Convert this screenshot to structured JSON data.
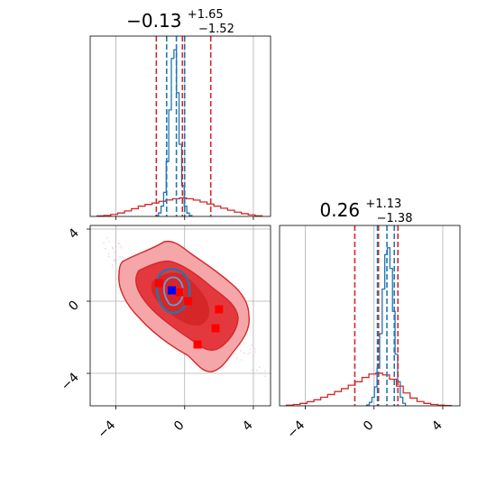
{
  "colors": {
    "reference": "#d62728",
    "fit": "#1f77b4",
    "truth": "#0000ff",
    "grid": "#b0b0b0"
  },
  "chart_data": [
    {
      "type": "histogram",
      "panel": "marginal-param-1",
      "title": {
        "median": "−0.13",
        "plus": "+1.65",
        "minus": "−1.52"
      },
      "xlim": [
        -5.5,
        5
      ],
      "xticks": [
        -4,
        0,
        4
      ],
      "red_quantiles": [
        -1.65,
        -0.13,
        1.52
      ],
      "blue_quantiles": [
        -1.05,
        -0.48,
        0.0
      ],
      "red_hist": {
        "x": [
          -4.9,
          -4.5,
          -4.1,
          -3.7,
          -3.3,
          -2.9,
          -2.5,
          -2.1,
          -1.7,
          -1.3,
          -0.9,
          -0.5,
          -0.1,
          0.3,
          0.7,
          1.1,
          1.5,
          1.9,
          2.3,
          2.7,
          3.1,
          3.5,
          3.9,
          4.3
        ],
        "y": [
          0.003,
          0.006,
          0.012,
          0.02,
          0.032,
          0.045,
          0.06,
          0.07,
          0.078,
          0.088,
          0.096,
          0.103,
          0.108,
          0.103,
          0.095,
          0.084,
          0.072,
          0.06,
          0.048,
          0.036,
          0.025,
          0.016,
          0.009,
          0.004
        ]
      },
      "blue_hist": {
        "x": [
          -1.6,
          -1.45,
          -1.3,
          -1.15,
          -1.0,
          -0.85,
          -0.7,
          -0.55,
          -0.4,
          -0.25,
          -0.1,
          0.05,
          0.2,
          0.35
        ],
        "y": [
          0.005,
          0.02,
          0.06,
          0.14,
          0.32,
          0.62,
          0.92,
          0.97,
          0.72,
          0.42,
          0.18,
          0.06,
          0.02,
          0.005
        ]
      },
      "ylim": [
        0,
        1.05
      ]
    },
    {
      "type": "histogram",
      "panel": "marginal-param-2",
      "title": {
        "median": "0.26",
        "plus": "+1.13",
        "minus": "−1.38"
      },
      "xlim": [
        -5.5,
        5
      ],
      "xticks": [
        -4,
        0,
        4
      ],
      "red_quantiles": [
        -1.12,
        0.26,
        1.39
      ],
      "blue_quantiles": [
        0.2,
        0.75,
        1.18
      ],
      "red_hist": {
        "x": [
          -4.9,
          -4.5,
          -4.1,
          -3.7,
          -3.3,
          -2.9,
          -2.5,
          -2.1,
          -1.7,
          -1.3,
          -0.9,
          -0.5,
          -0.1,
          0.3,
          0.7,
          1.1,
          1.5,
          1.9,
          2.3,
          2.7,
          3.1,
          3.5,
          3.9,
          4.3
        ],
        "y": [
          0.004,
          0.008,
          0.014,
          0.024,
          0.035,
          0.05,
          0.066,
          0.083,
          0.1,
          0.12,
          0.14,
          0.165,
          0.185,
          0.19,
          0.18,
          0.155,
          0.115,
          0.075,
          0.045,
          0.025,
          0.014,
          0.008,
          0.004,
          0.002
        ]
      },
      "blue_hist": {
        "x": [
          -0.35,
          -0.2,
          -0.05,
          0.1,
          0.25,
          0.4,
          0.55,
          0.7,
          0.85,
          1.0,
          1.15,
          1.3,
          1.45,
          1.6,
          1.75
        ],
        "y": [
          0.005,
          0.02,
          0.05,
          0.11,
          0.22,
          0.42,
          0.68,
          0.88,
          0.92,
          0.8,
          0.55,
          0.3,
          0.14,
          0.05,
          0.015
        ]
      },
      "ylim": [
        0,
        1.05
      ]
    },
    {
      "type": "scatter",
      "panel": "joint-2d",
      "xlim": [
        -5.5,
        5
      ],
      "ylim": [
        -5.8,
        4.2
      ],
      "xticks": [
        -4,
        0,
        4
      ],
      "yticks": [
        4,
        0,
        -4
      ],
      "red_points": [
        {
          "x": -1.5,
          "y": 1.0
        },
        {
          "x": -0.3,
          "y": 0.5
        },
        {
          "x": 0.2,
          "y": 0.0
        },
        {
          "x": 2.0,
          "y": -0.45
        },
        {
          "x": 1.8,
          "y": -1.5
        },
        {
          "x": 0.75,
          "y": -2.4
        }
      ],
      "truth_point": {
        "x": -0.75,
        "y": 0.6
      }
    }
  ]
}
